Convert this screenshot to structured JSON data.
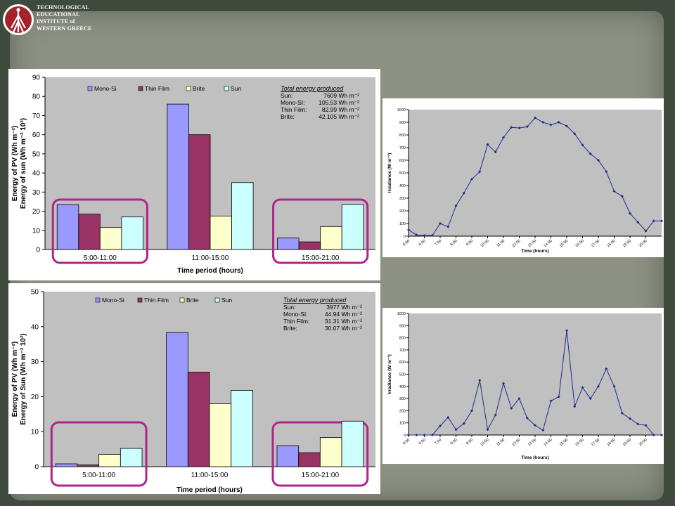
{
  "logo": {
    "lines": [
      "TECHNOLOGICAL",
      "EDUCATIONAL",
      "INSTITUTE of",
      "WESTERN GREECE"
    ]
  },
  "colors": {
    "mono_si": "#9999ff",
    "thin_film": "#993366",
    "brite": "#ffffcc",
    "sun": "#ccffff",
    "plot_bg": "#c0c0c0",
    "highlight": "#b0228c",
    "line": "#1f2a8a"
  },
  "chart_data": [
    {
      "type": "bar",
      "ylabel_lines": [
        "Energy of PV (Wh m⁻²)",
        "Energy of sun (Wh m⁻² 10²)"
      ],
      "xlabel": "Time period (hours)",
      "ylim": [
        0,
        90
      ],
      "yticks": [
        "0",
        "10",
        "20",
        "30",
        "40",
        "50",
        "60",
        "70",
        "80",
        "90"
      ],
      "categories": [
        "5:00-11:00",
        "11:00-15:00",
        "15:00-21:00"
      ],
      "series": [
        {
          "name": "Mono-Si",
          "values": [
            23.5,
            76,
            6
          ]
        },
        {
          "name": "Thin Film",
          "values": [
            18.5,
            60,
            4
          ]
        },
        {
          "name": "Brite",
          "values": [
            11.5,
            17.5,
            12
          ]
        },
        {
          "name": "Sun",
          "values": [
            17,
            35,
            23.5
          ]
        }
      ],
      "highlighted_categories": [
        0,
        2
      ],
      "legend_position": "top",
      "annotation": {
        "title": "Total energy produced",
        "rows": [
          [
            "Sun:",
            "7609 Wh m⁻²"
          ],
          [
            "Mono-SI:",
            "105.53 Wh m⁻²"
          ],
          [
            "Thin Film:",
            "82.99  Wh m⁻²"
          ],
          [
            "Brite:",
            "42.105 Wh m⁻²"
          ]
        ]
      }
    },
    {
      "type": "line",
      "ylabel": "Irradiance (W m⁻²)",
      "xlabel": "Time (hours)",
      "ylim": [
        0,
        1000
      ],
      "yticks": [
        "0",
        "100",
        "200",
        "300",
        "400",
        "500",
        "600",
        "700",
        "800",
        "900",
        "1000"
      ],
      "xticks": [
        "5:00",
        "6:00",
        "7:00",
        "8:00",
        "9:00",
        "10:00",
        "11:00",
        "12:00",
        "13:00",
        "14:00",
        "15:00",
        "16:00",
        "17:00",
        "18:00",
        "19:00",
        "20:00"
      ],
      "x": [
        5.0,
        5.5,
        6.0,
        6.5,
        7.0,
        7.5,
        8.0,
        8.5,
        9.0,
        9.5,
        10.0,
        10.5,
        11.0,
        11.5,
        12.0,
        12.5,
        13.0,
        13.5,
        14.0,
        14.5,
        15.0,
        15.5,
        16.0,
        16.5,
        17.0,
        17.5,
        18.0,
        18.5,
        19.0,
        19.5,
        20.0,
        20.5,
        21.0
      ],
      "y": [
        50,
        10,
        5,
        5,
        100,
        75,
        240,
        340,
        450,
        510,
        725,
        665,
        780,
        860,
        855,
        865,
        935,
        900,
        880,
        900,
        870,
        810,
        720,
        650,
        600,
        510,
        355,
        315,
        180,
        110,
        40,
        120,
        120
      ]
    },
    {
      "type": "bar",
      "ylabel_lines": [
        "Energy of PV (Wh m⁻²)",
        "Energy of Sun (Wh m⁻² 10²)"
      ],
      "xlabel": "Time period (hours)",
      "ylim": [
        0,
        50
      ],
      "yticks": [
        "0",
        "10",
        "20",
        "30",
        "40",
        "50"
      ],
      "categories": [
        "5:00-11:00",
        "11:00-15:00",
        "15:00-21:00"
      ],
      "series": [
        {
          "name": "Mono-Si",
          "values": [
            0.8,
            38.3,
            6
          ]
        },
        {
          "name": "Thin Film",
          "values": [
            0.5,
            27,
            4
          ]
        },
        {
          "name": "Brite",
          "values": [
            3.5,
            18,
            8.3
          ]
        },
        {
          "name": "Sun",
          "values": [
            5.2,
            21.8,
            13
          ]
        }
      ],
      "highlighted_categories": [
        0,
        2
      ],
      "legend_position": "top",
      "annotation": {
        "title": "Total energy produced",
        "rows": [
          [
            "Sun:",
            "3977 Wh m⁻²"
          ],
          [
            "Mono-SI:",
            "44.94 Wh m⁻²"
          ],
          [
            "Thin Film:",
            "31.31  Wh m⁻²"
          ],
          [
            "Brite:",
            "30.07 Wh m⁻²"
          ]
        ]
      }
    },
    {
      "type": "line",
      "ylabel": "Irradiance (W m⁻²)",
      "xlabel": "Time (hours)",
      "ylim": [
        0,
        1000
      ],
      "yticks": [
        "0",
        "100",
        "200",
        "300",
        "400",
        "500",
        "600",
        "700",
        "800",
        "900",
        "1000"
      ],
      "xticks": [
        "5:00",
        "6:00",
        "7:00",
        "8:00",
        "9:00",
        "10:00",
        "11:00",
        "12:00",
        "13:00",
        "14:00",
        "15:00",
        "16:00",
        "17:00",
        "18:00",
        "19:00",
        "20:00"
      ],
      "x": [
        5.0,
        5.5,
        6.0,
        6.5,
        7.0,
        7.5,
        8.0,
        8.5,
        9.0,
        9.5,
        10.0,
        10.5,
        11.0,
        11.5,
        12.0,
        12.5,
        13.0,
        13.5,
        14.0,
        14.5,
        15.0,
        15.5,
        16.0,
        16.5,
        17.0,
        17.5,
        18.0,
        18.5,
        19.0,
        19.5,
        20.0,
        20.5,
        21.0
      ],
      "y": [
        0,
        0,
        0,
        0,
        75,
        145,
        45,
        95,
        200,
        450,
        45,
        165,
        425,
        220,
        300,
        140,
        80,
        40,
        280,
        315,
        860,
        235,
        390,
        300,
        400,
        545,
        400,
        180,
        135,
        90,
        80,
        0,
        0
      ]
    }
  ]
}
